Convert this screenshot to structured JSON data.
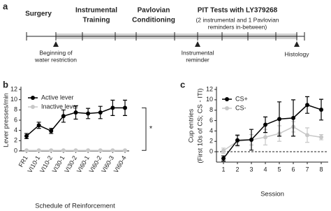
{
  "timeline": {
    "panel_label": "a",
    "phases": [
      [
        "Surgery"
      ],
      [
        "Instrumental",
        "Training"
      ],
      [
        "Pavlovian",
        "Conditioning"
      ],
      [
        "PIT Tests with LY379268"
      ]
    ],
    "note": [
      "(2 instrumental and 1 Pavlovian",
      "reminders in-between)"
    ],
    "events": [
      [
        "Beginning of",
        "water restriction"
      ],
      [
        "Instrumental",
        "reminder"
      ],
      [
        "Histology"
      ]
    ]
  },
  "chart_data": [
    {
      "type": "line",
      "panel_label": "b",
      "categories": [
        "FR1",
        "VI10-1",
        "VI10-2",
        "VI30-1",
        "VI30-2",
        "VI60-1",
        "VI60-2",
        "VI60-3",
        "VI60-4"
      ],
      "series": [
        {
          "name": "Active lever",
          "color": "#000000",
          "values": [
            2.9,
            5.0,
            3.9,
            6.8,
            7.5,
            7.3,
            7.5,
            8.4,
            8.4
          ],
          "errors": [
            0.5,
            0.6,
            0.5,
            1.2,
            1.3,
            1.0,
            1.2,
            1.5,
            1.5
          ]
        },
        {
          "name": "Inactive lever",
          "color": "#c8c8c8",
          "values": [
            0.1,
            0.1,
            0.1,
            0.1,
            0.1,
            0.1,
            0.1,
            0.1,
            0.1
          ]
        }
      ],
      "ylim": [
        0,
        12
      ],
      "yticks": [
        0,
        2,
        4,
        6,
        8,
        10,
        12
      ],
      "ylabel": [
        "Lever presses/min"
      ],
      "xlabel": "Schedule of Reinforcement",
      "annotation": "*"
    },
    {
      "type": "line",
      "panel_label": "c",
      "x": [
        1,
        2,
        3,
        4,
        5,
        6,
        7,
        8
      ],
      "xlim": [
        0.5,
        8.5
      ],
      "xticks": [
        1,
        2,
        3,
        4,
        5,
        6,
        7,
        8
      ],
      "series": [
        {
          "name": "CS+",
          "color": "#000000",
          "values": [
            -1.3,
            2.2,
            2.3,
            5.2,
            6.3,
            6.5,
            9.0,
            8.1
          ],
          "errors": [
            0.5,
            1.0,
            2.0,
            1.5,
            3.3,
            3.5,
            1.6,
            2.0
          ]
        },
        {
          "name": "CS-",
          "color": "#c8c8c8",
          "values": [
            0.2,
            2.0,
            2.3,
            2.8,
            3.5,
            4.8,
            3.2,
            2.8
          ],
          "errors": [
            0.5,
            1.0,
            1.0,
            1.5,
            1.5,
            1.0,
            1.4,
            0.5
          ]
        }
      ],
      "ylim": [
        -2,
        12
      ],
      "yticks": [
        0,
        2,
        4,
        6,
        8,
        10,
        12
      ],
      "hline": 0,
      "ylabel": [
        "Cup entries",
        "(First 10s of CS; CS - ITI)"
      ],
      "xlabel": "Session"
    }
  ]
}
